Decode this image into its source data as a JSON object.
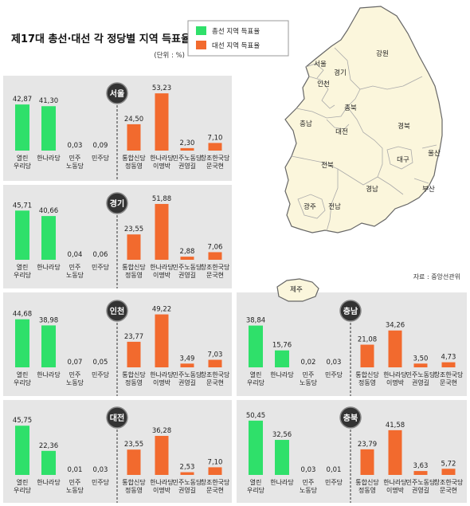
{
  "title": "제17대 총선·대선 각 정당별 지역 득표율",
  "unit": "(단위 : %)",
  "legend": [
    {
      "label": "총선 지역 득표율",
      "color": "#2fe06a"
    },
    {
      "label": "대선 지역 득표율",
      "color": "#f26a2e"
    }
  ],
  "source": "자료 : 중앙선관위",
  "map": {
    "regions": [
      "강원",
      "서울",
      "경기",
      "인천",
      "충북",
      "충남",
      "대전",
      "경북",
      "울산",
      "대구",
      "전북",
      "경남",
      "부산",
      "광주",
      "전남",
      "제주"
    ]
  },
  "colors": {
    "green": "#2fe06a",
    "orange": "#f26a2e",
    "panel": "#e6e6e6",
    "badge": "#333333",
    "map": "#fbf6dc"
  },
  "chart_data": [
    {
      "type": "bar",
      "region": "서울",
      "series": [
        {
          "name": "총선 지역 득표율",
          "categories": [
            [
              "열린",
              "우리당"
            ],
            [
              "한나라당"
            ],
            [
              "민주",
              "노동당"
            ],
            [
              "민주당"
            ]
          ],
          "values": [
            42.87,
            41.3,
            0.03,
            0.09
          ],
          "labels": [
            "42,87",
            "41,30",
            "0,03",
            "0,09"
          ]
        },
        {
          "name": "대선 지역 득표율",
          "categories": [
            [
              "통합신당",
              "정동영"
            ],
            [
              "한나라당",
              "이명박"
            ],
            [
              "민주노동당",
              "권영길"
            ],
            [
              "창조한국당",
              "문국현"
            ]
          ],
          "values": [
            24.5,
            53.23,
            2.3,
            7.1
          ],
          "labels": [
            "24,50",
            "53,23",
            "2,30",
            "7,10"
          ]
        }
      ]
    },
    {
      "type": "bar",
      "region": "경기",
      "series": [
        {
          "name": "총선 지역 득표율",
          "categories": [
            [
              "열린",
              "우리당"
            ],
            [
              "한나라당"
            ],
            [
              "민주",
              "노동당"
            ],
            [
              "민주당"
            ]
          ],
          "values": [
            45.71,
            40.66,
            0.04,
            0.06
          ],
          "labels": [
            "45,71",
            "40,66",
            "0,04",
            "0,06"
          ]
        },
        {
          "name": "대선 지역 득표율",
          "categories": [
            [
              "통합신당",
              "정동영"
            ],
            [
              "한나라당",
              "이명박"
            ],
            [
              "민주노동당",
              "권영길"
            ],
            [
              "창조한국당",
              "문국현"
            ]
          ],
          "values": [
            23.55,
            51.88,
            2.88,
            7.06
          ],
          "labels": [
            "23,55",
            "51,88",
            "2,88",
            "7,06"
          ]
        }
      ]
    },
    {
      "type": "bar",
      "region": "인천",
      "series": [
        {
          "name": "총선 지역 득표율",
          "categories": [
            [
              "열린",
              "우리당"
            ],
            [
              "한나라당"
            ],
            [
              "민주",
              "노동당"
            ],
            [
              "민주당"
            ]
          ],
          "values": [
            44.68,
            38.98,
            0.07,
            0.05
          ],
          "labels": [
            "44,68",
            "38,98",
            "0,07",
            "0,05"
          ]
        },
        {
          "name": "대선 지역 득표율",
          "categories": [
            [
              "통합신당",
              "정동영"
            ],
            [
              "한나라당",
              "이명박"
            ],
            [
              "민주노동당",
              "권영길"
            ],
            [
              "창조한국당",
              "문국현"
            ]
          ],
          "values": [
            23.77,
            49.22,
            3.49,
            7.03
          ],
          "labels": [
            "23,77",
            "49,22",
            "3,49",
            "7,03"
          ]
        }
      ]
    },
    {
      "type": "bar",
      "region": "충남",
      "series": [
        {
          "name": "총선 지역 득표율",
          "categories": [
            [
              "열린",
              "우리당"
            ],
            [
              "한나라당"
            ],
            [
              "민주",
              "노동당"
            ],
            [
              "민주당"
            ]
          ],
          "values": [
            38.84,
            15.76,
            0.02,
            0.03
          ],
          "labels": [
            "38,84",
            "15,76",
            "0,02",
            "0,03"
          ]
        },
        {
          "name": "대선 지역 득표율",
          "categories": [
            [
              "통합신당",
              "정동영"
            ],
            [
              "한나라당",
              "이명박"
            ],
            [
              "민주노동당",
              "권영길"
            ],
            [
              "창조한국당",
              "문국현"
            ]
          ],
          "values": [
            21.08,
            34.26,
            3.5,
            4.73
          ],
          "labels": [
            "21,08",
            "34,26",
            "3,50",
            "4,73"
          ]
        }
      ]
    },
    {
      "type": "bar",
      "region": "대전",
      "series": [
        {
          "name": "총선 지역 득표율",
          "categories": [
            [
              "열린",
              "우리당"
            ],
            [
              "한나라당"
            ],
            [
              "민주",
              "노동당"
            ],
            [
              "민주당"
            ]
          ],
          "values": [
            45.75,
            22.36,
            0.01,
            0.03
          ],
          "labels": [
            "45,75",
            "22,36",
            "0,01",
            "0,03"
          ]
        },
        {
          "name": "대선 지역 득표율",
          "categories": [
            [
              "통합신당",
              "정동영"
            ],
            [
              "한나라당",
              "이명박"
            ],
            [
              "민주노동당",
              "권영길"
            ],
            [
              "창조한국당",
              "문국현"
            ]
          ],
          "values": [
            23.55,
            36.28,
            2.53,
            7.1
          ],
          "labels": [
            "23,55",
            "36,28",
            "2,53",
            "7,10"
          ]
        }
      ]
    },
    {
      "type": "bar",
      "region": "충북",
      "series": [
        {
          "name": "총선 지역 득표율",
          "categories": [
            [
              "열린",
              "우리당"
            ],
            [
              "한나라당"
            ],
            [
              "민주",
              "노동당"
            ],
            [
              "민주당"
            ]
          ],
          "values": [
            50.45,
            32.56,
            0.03,
            0.01
          ],
          "labels": [
            "50,45",
            "32,56",
            "0,03",
            "0,01"
          ]
        },
        {
          "name": "대선 지역 득표율",
          "categories": [
            [
              "통합신당",
              "정동영"
            ],
            [
              "한나라당",
              "이명박"
            ],
            [
              "민주노동당",
              "권영길"
            ],
            [
              "창조한국당",
              "문국현"
            ]
          ],
          "values": [
            23.79,
            41.58,
            3.63,
            5.72
          ],
          "labels": [
            "23,79",
            "41,58",
            "3,63",
            "5,72"
          ]
        }
      ]
    }
  ]
}
